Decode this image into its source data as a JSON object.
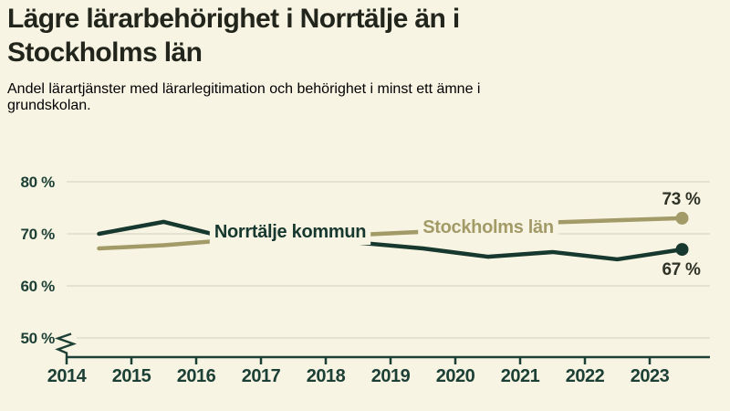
{
  "page": {
    "background": "#f8f4e3"
  },
  "header": {
    "title_lines": [
      "Lägre lärarbehörighet i Norrtälje än i",
      "Stockholms län"
    ],
    "subtitle_lines": [
      "Andel lärartjänster med lärarlegitimation och behörighet i minst ett ämne i",
      "grundskolan."
    ]
  },
  "chart_data": {
    "type": "line",
    "title": "Lägre lärarbehörighet i Norrtälje än i Stockholms län",
    "subtitle": "Andel lärartjänster med lärarlegitimation och behörighet i minst ett ämne i grundskolan.",
    "x_tick_labels": [
      "2014",
      "2015",
      "2016",
      "2017",
      "2018",
      "2019",
      "2020",
      "2021",
      "2022",
      "2023"
    ],
    "x_positions": [
      2014.5,
      2015.5,
      2016.5,
      2017.5,
      2018.5,
      2019.5,
      2020.5,
      2021.5,
      2022.5,
      2023.5
    ],
    "y_ticks": [
      80,
      70,
      60,
      50
    ],
    "y_tick_labels": [
      "80 %",
      "70 %",
      "60 %",
      "50 %"
    ],
    "ylim": [
      46,
      84
    ],
    "unit": "%",
    "grid": "horizontal",
    "axis_break_below": 50,
    "legend_position": "on-line-labels",
    "series": [
      {
        "name": "Stockholms län",
        "color": "#a29a67",
        "values": [
          67.2,
          67.8,
          68.8,
          69.4,
          69.8,
          70.4,
          71.3,
          72.2,
          72.6,
          73
        ],
        "end_value_label": "73 %",
        "end_label_position": "above",
        "name_label_center_x": 535,
        "name_label_baseline_y": 255
      },
      {
        "name": "Norrtälje kommun",
        "color": "#17382e",
        "values": [
          70,
          72.3,
          69.2,
          68.8,
          68.3,
          67.2,
          65.6,
          66.5,
          65.1,
          67
        ],
        "end_value_label": "67 %",
        "end_label_position": "below",
        "name_label_center_x": 318,
        "name_label_baseline_y": 260
      }
    ],
    "colors": {
      "grid": "#deddcb",
      "axis": "#1d4036",
      "value_label": "#2f3327",
      "halo": "#f8f4e3"
    }
  }
}
